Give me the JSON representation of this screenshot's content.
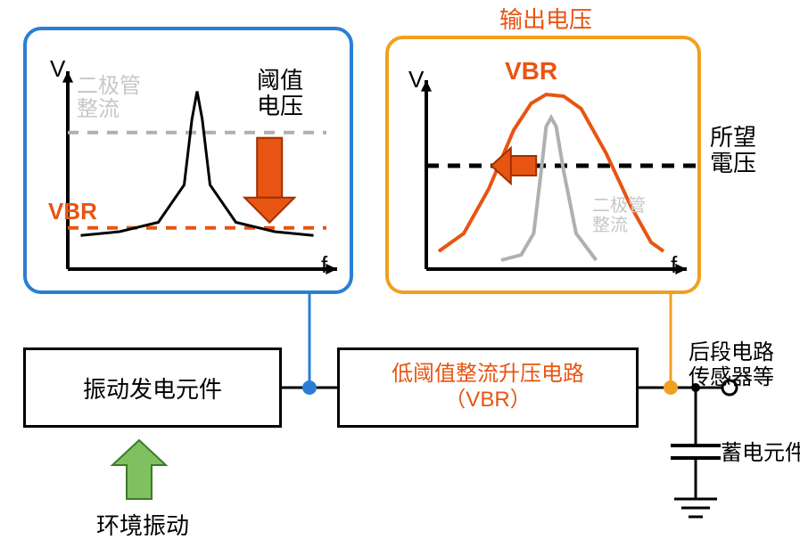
{
  "top_label_output": "输出电压",
  "left_chart": {
    "border_color": "#2a7fd4",
    "axis_y": "V",
    "axis_x": "f",
    "gray_label": "二极管\n整流",
    "threshold_label": "阈值\n电压",
    "vbr_label": "VBR",
    "vbr_color": "#e85412",
    "arrow_color": "#e85412",
    "curve_color": "#000000",
    "dash_gray": "#b0b0b0",
    "peak": {
      "x": [
        0.05,
        0.2,
        0.35,
        0.45,
        0.48,
        0.5,
        0.52,
        0.55,
        0.65,
        0.8,
        0.95
      ],
      "y": [
        0.18,
        0.2,
        0.25,
        0.45,
        0.8,
        0.95,
        0.8,
        0.45,
        0.25,
        0.2,
        0.18
      ]
    },
    "thresh_y": 0.73,
    "vbr_y": 0.22
  },
  "right_chart": {
    "border_color": "#f0a020",
    "axis_y": "V",
    "axis_x": "f",
    "vbr_label": "VBR",
    "vbr_color": "#e85412",
    "desired_label": "所望\n電压",
    "gray_label": "二极管\n整流",
    "dash_color": "#000000",
    "gray_curve_color": "#b0b0b0",
    "peak_gray": {
      "x": [
        0.3,
        0.38,
        0.43,
        0.46,
        0.48,
        0.5,
        0.52,
        0.55,
        0.6,
        0.68
      ],
      "y": [
        0.05,
        0.08,
        0.2,
        0.55,
        0.8,
        0.85,
        0.8,
        0.55,
        0.2,
        0.05
      ]
    },
    "peak_vbr": {
      "x": [
        0.05,
        0.15,
        0.25,
        0.35,
        0.42,
        0.48,
        0.55,
        0.62,
        0.72,
        0.82,
        0.9,
        0.95
      ],
      "y": [
        0.1,
        0.2,
        0.45,
        0.78,
        0.93,
        0.98,
        0.97,
        0.9,
        0.65,
        0.35,
        0.15,
        0.1
      ]
    },
    "desired_y": 0.58,
    "arrow_color": "#e85412"
  },
  "block_left": "振动发电元件",
  "block_right": "低阈值整流升压电路\n（VBR）",
  "block_right_color": "#e85412",
  "label_env_vib": "环境振动",
  "label_downstream": "后段电路\n传感器等",
  "label_storage": "蓄电元件",
  "env_arrow_color": "#7fc060",
  "wire_color": "#000000"
}
